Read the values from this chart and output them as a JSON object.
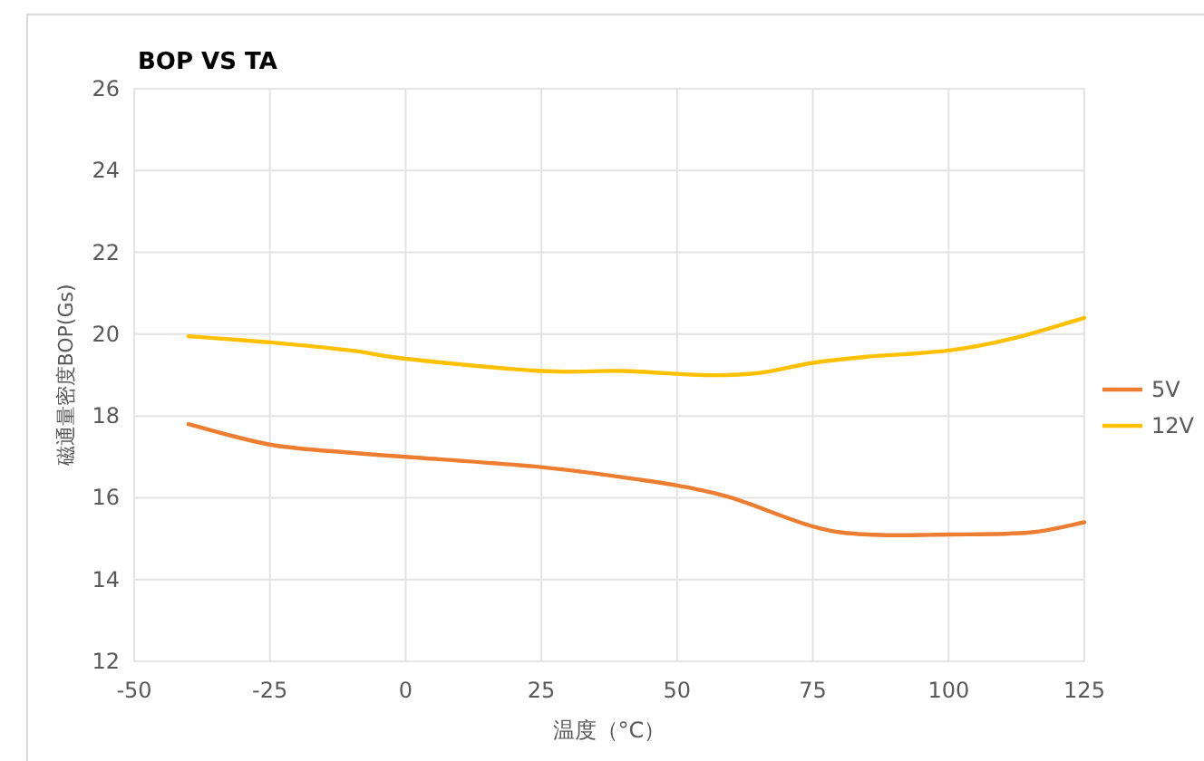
{
  "chart_data": {
    "type": "line",
    "title": "BOP VS TA",
    "xlabel": "温度（°C）",
    "ylabel": "磁通量密度BOP(Gs)",
    "xlim": [
      -50,
      125
    ],
    "xticks": [
      -50,
      -25,
      0,
      25,
      50,
      75,
      100,
      125
    ],
    "ylim": [
      12,
      26
    ],
    "yticks": [
      12,
      14,
      16,
      18,
      20,
      22,
      24,
      26
    ],
    "grid": true,
    "legend": "right",
    "marker": "none",
    "line_style": "solid",
    "series": [
      {
        "name": "5V",
        "color": "#ed7d31",
        "x": [
          -40,
          -25,
          -10,
          0,
          25,
          40,
          50,
          60,
          75,
          85,
          100,
          115,
          125
        ],
        "values": [
          17.8,
          17.3,
          17.1,
          17.0,
          16.75,
          16.5,
          16.3,
          16.0,
          15.3,
          15.1,
          15.1,
          15.15,
          15.4
        ]
      },
      {
        "name": "12V",
        "color": "#ffc000",
        "x": [
          -40,
          -25,
          -10,
          0,
          25,
          40,
          55,
          65,
          75,
          85,
          100,
          112,
          125
        ],
        "values": [
          19.95,
          19.8,
          19.6,
          19.4,
          19.1,
          19.1,
          19.0,
          19.05,
          19.3,
          19.45,
          19.6,
          19.9,
          20.4
        ]
      }
    ]
  }
}
